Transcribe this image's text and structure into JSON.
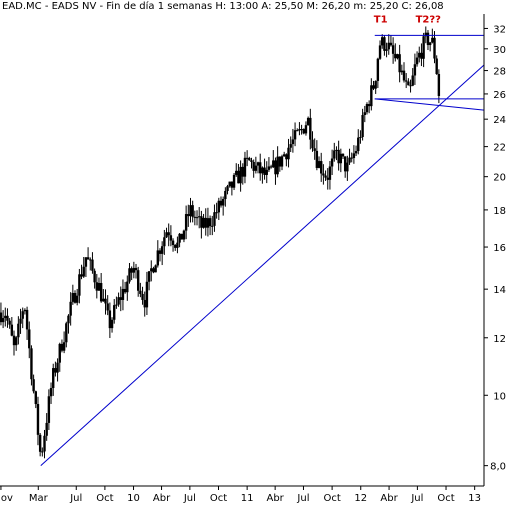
{
  "header": {
    "text": "EAD.MC - EADS NV - Fin de día 1 semanas  H: 13:00  A: 25,50  M: 26,20  m: 25,20  C: 26,08"
  },
  "chart_data": {
    "type": "bar",
    "subtype": "weekly-ohlc",
    "title": "",
    "xlabel": "",
    "ylabel": "",
    "y_scale": "log",
    "ylim": [
      7.5,
      33.5
    ],
    "y_ticks": [
      "32",
      "30",
      "28",
      "26",
      "24",
      "22",
      "20",
      "18",
      "16",
      "14",
      "12",
      "10",
      "8,0"
    ],
    "y_tick_values": [
      32,
      30,
      28,
      26,
      24,
      22,
      20,
      18,
      16,
      14,
      12,
      10,
      8
    ],
    "x_ticks": [
      "ov",
      "Mar",
      "Jul",
      "Oct",
      "10",
      "Abr",
      "Jul",
      "Oct",
      "11",
      "Abr",
      "Jul",
      "Oct",
      "12",
      "Abr",
      "Jul",
      "Oct",
      "13"
    ],
    "x_tick_dates": [
      "2008-11-01",
      "2009-03-01",
      "2009-07-01",
      "2009-10-01",
      "2010-01-01",
      "2010-04-01",
      "2010-07-01",
      "2010-10-01",
      "2011-01-01",
      "2011-04-01",
      "2011-07-01",
      "2011-10-01",
      "2012-01-01",
      "2012-04-01",
      "2012-07-01",
      "2012-10-01",
      "2013-01-01"
    ],
    "x_range": [
      "2008-10-29",
      "2013-01-31"
    ],
    "grid": false,
    "series": [
      {
        "name": "",
        "approx_close_path": [
          [
            "2008-11-15",
            13.0
          ],
          [
            "2008-12-15",
            11.5
          ],
          [
            "2009-01-15",
            13.5
          ],
          [
            "2009-02-10",
            10.5
          ],
          [
            "2009-03-09",
            8.2
          ],
          [
            "2009-04-15",
            10.5
          ],
          [
            "2009-05-20",
            12.0
          ],
          [
            "2009-06-20",
            13.5
          ],
          [
            "2009-08-01",
            15.5
          ],
          [
            "2009-09-15",
            14.0
          ],
          [
            "2009-10-15",
            12.5
          ],
          [
            "2009-11-15",
            13.5
          ],
          [
            "2010-01-01",
            15.0
          ],
          [
            "2010-02-05",
            13.5
          ],
          [
            "2010-03-01",
            15.0
          ],
          [
            "2010-04-20",
            17.0
          ],
          [
            "2010-05-25",
            16.0
          ],
          [
            "2010-07-01",
            18.0
          ],
          [
            "2010-08-10",
            17.0
          ],
          [
            "2010-09-10",
            17.5
          ],
          [
            "2010-10-15",
            18.5
          ],
          [
            "2010-11-15",
            19.5
          ],
          [
            "2011-01-05",
            21.0
          ],
          [
            "2011-02-01",
            20.5
          ],
          [
            "2011-03-05",
            20.0
          ],
          [
            "2011-04-15",
            21.0
          ],
          [
            "2011-05-15",
            22.0
          ],
          [
            "2011-06-20",
            23.0
          ],
          [
            "2011-07-15",
            24.0
          ],
          [
            "2011-08-15",
            21.0
          ],
          [
            "2011-09-15",
            20.0
          ],
          [
            "2011-10-15",
            21.5
          ],
          [
            "2011-11-20",
            20.5
          ],
          [
            "2011-12-20",
            22.0
          ],
          [
            "2012-01-20",
            25.0
          ],
          [
            "2012-02-15",
            27.0
          ],
          [
            "2012-03-01",
            30.5
          ],
          [
            "2012-03-25",
            30.5
          ],
          [
            "2012-04-10",
            29.5
          ],
          [
            "2012-05-01",
            28.5
          ],
          [
            "2012-05-20",
            27.0
          ],
          [
            "2012-06-05",
            25.8
          ],
          [
            "2012-06-25",
            28.5
          ],
          [
            "2012-07-15",
            30.0
          ],
          [
            "2012-08-01",
            31.0
          ],
          [
            "2012-08-20",
            30.5
          ],
          [
            "2012-09-01",
            28.0
          ],
          [
            "2012-09-10",
            25.5
          ],
          [
            "2012-09-14",
            26.08
          ]
        ]
      }
    ],
    "trendlines": [
      {
        "from": [
          "2009-03-09",
          8.0
        ],
        "to": [
          "2013-01-31",
          28.5
        ]
      },
      {
        "from": [
          "2012-02-15",
          31.3
        ],
        "to": [
          "2013-01-31",
          31.3
        ]
      },
      {
        "from": [
          "2012-02-15",
          25.6
        ],
        "to": [
          "2013-01-31",
          25.6
        ]
      },
      {
        "from": [
          "2012-02-15",
          25.6
        ],
        "to": [
          "2013-01-31",
          24.7
        ]
      }
    ],
    "annotations": [
      {
        "text": "T1",
        "date": "2012-03-05",
        "value": 33.0
      },
      {
        "text": "T2??",
        "date": "2012-08-05",
        "value": 33.0
      }
    ],
    "colors": {
      "candles": "#000000",
      "trendlines": "#0000cc",
      "annotations": "#cc0000",
      "axis": "#000000"
    }
  }
}
